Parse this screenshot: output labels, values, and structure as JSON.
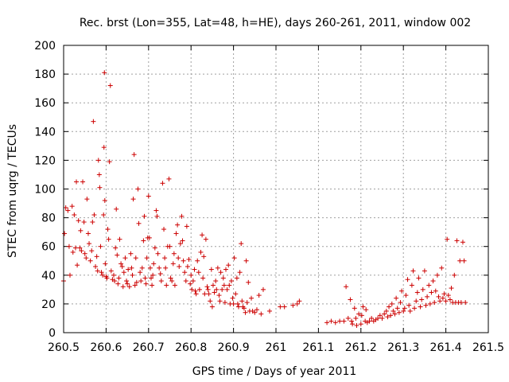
{
  "chart_data": {
    "type": "scatter",
    "title": "Rec. brst (Lon=355, Lat=48, h=HE), days 260-261, 2011, window 002",
    "xlabel": "GPS time / Days of year 2011",
    "ylabel": "STEC from uqrg / TECUs",
    "xlim": [
      260.5,
      261.5
    ],
    "ylim": [
      0,
      200
    ],
    "grid": true,
    "x_ticks": [
      260.5,
      260.6,
      260.7,
      260.8,
      260.9,
      261.0,
      261.1,
      261.2,
      261.3,
      261.4,
      261.5
    ],
    "x_tick_labels": [
      "260.5",
      "260.6",
      "260.7",
      "260.8",
      "260.9",
      "261",
      "261.1",
      "261.2",
      "261.3",
      "261.4",
      "261.5"
    ],
    "y_ticks": [
      0,
      20,
      40,
      60,
      80,
      100,
      120,
      140,
      160,
      180,
      200
    ],
    "y_tick_labels": [
      "0",
      "20",
      "40",
      "60",
      "80",
      "100",
      "120",
      "140",
      "160",
      "180",
      "200"
    ],
    "marker": "+",
    "color": "#cc0000",
    "series": [
      {
        "name": "STEC",
        "points": [
          [
            260.5,
            36
          ],
          [
            260.502,
            69
          ],
          [
            260.505,
            87
          ],
          [
            260.51,
            85
          ],
          [
            260.513,
            60
          ],
          [
            260.515,
            40
          ],
          [
            260.52,
            88
          ],
          [
            260.522,
            56
          ],
          [
            260.525,
            82
          ],
          [
            260.528,
            59
          ],
          [
            260.53,
            105
          ],
          [
            260.532,
            47
          ],
          [
            260.535,
            78
          ],
          [
            260.538,
            59
          ],
          [
            260.54,
            71
          ],
          [
            260.542,
            57
          ],
          [
            260.545,
            105
          ],
          [
            260.548,
            77
          ],
          [
            260.55,
            55
          ],
          [
            260.553,
            52
          ],
          [
            260.555,
            93
          ],
          [
            260.558,
            69
          ],
          [
            260.56,
            62
          ],
          [
            260.563,
            50
          ],
          [
            260.566,
            57
          ],
          [
            260.568,
            77
          ],
          [
            260.57,
            147
          ],
          [
            260.572,
            82
          ],
          [
            260.575,
            46
          ],
          [
            260.578,
            53
          ],
          [
            260.58,
            43
          ],
          [
            260.582,
            120
          ],
          [
            260.584,
            110
          ],
          [
            260.585,
            101
          ],
          [
            260.587,
            60
          ],
          [
            260.589,
            42
          ],
          [
            260.592,
            40
          ],
          [
            260.594,
            82
          ],
          [
            260.595,
            129
          ],
          [
            260.596,
            181
          ],
          [
            260.597,
            92
          ],
          [
            260.598,
            48
          ],
          [
            260.6,
            39
          ],
          [
            260.602,
            38
          ],
          [
            260.604,
            72
          ],
          [
            260.606,
            65
          ],
          [
            260.608,
            119
          ],
          [
            260.61,
            172
          ],
          [
            260.612,
            43
          ],
          [
            260.615,
            37
          ],
          [
            260.618,
            40
          ],
          [
            260.62,
            36
          ],
          [
            260.622,
            59
          ],
          [
            260.624,
            86
          ],
          [
            260.626,
            54
          ],
          [
            260.628,
            34
          ],
          [
            260.63,
            38
          ],
          [
            260.632,
            65
          ],
          [
            260.635,
            48
          ],
          [
            260.638,
            46
          ],
          [
            260.64,
            32
          ],
          [
            260.642,
            42
          ],
          [
            260.645,
            52
          ],
          [
            260.648,
            36
          ],
          [
            260.65,
            34
          ],
          [
            260.652,
            44
          ],
          [
            260.655,
            32
          ],
          [
            260.658,
            55
          ],
          [
            260.66,
            45
          ],
          [
            260.662,
            40
          ],
          [
            260.664,
            93
          ],
          [
            260.666,
            124
          ],
          [
            260.668,
            33
          ],
          [
            260.67,
            52
          ],
          [
            260.672,
            35
          ],
          [
            260.675,
            100
          ],
          [
            260.677,
            76
          ],
          [
            260.68,
            42
          ],
          [
            260.682,
            36
          ],
          [
            260.685,
            45
          ],
          [
            260.688,
            64
          ],
          [
            260.69,
            81
          ],
          [
            260.692,
            38
          ],
          [
            260.694,
            34
          ],
          [
            260.696,
            52
          ],
          [
            260.698,
            66
          ],
          [
            260.7,
            95
          ],
          [
            260.702,
            66
          ],
          [
            260.704,
            45
          ],
          [
            260.706,
            38
          ],
          [
            260.708,
            33
          ],
          [
            260.71,
            40
          ],
          [
            260.712,
            48
          ],
          [
            260.715,
            59
          ],
          [
            260.718,
            85
          ],
          [
            260.72,
            81
          ],
          [
            260.722,
            55
          ],
          [
            260.725,
            45
          ],
          [
            260.728,
            41
          ],
          [
            260.73,
            36
          ],
          [
            260.733,
            104
          ],
          [
            260.736,
            72
          ],
          [
            260.738,
            52
          ],
          [
            260.74,
            45
          ],
          [
            260.742,
            33
          ],
          [
            260.745,
            60
          ],
          [
            260.748,
            107
          ],
          [
            260.75,
            60
          ],
          [
            260.752,
            38
          ],
          [
            260.755,
            36
          ],
          [
            260.758,
            48
          ],
          [
            260.76,
            55
          ],
          [
            260.762,
            33
          ],
          [
            260.765,
            69
          ],
          [
            260.768,
            75
          ],
          [
            260.77,
            52
          ],
          [
            260.772,
            46
          ],
          [
            260.775,
            62
          ],
          [
            260.778,
            81
          ],
          [
            260.78,
            64
          ],
          [
            260.782,
            50
          ],
          [
            260.785,
            42
          ],
          [
            260.788,
            36
          ],
          [
            260.79,
            74
          ],
          [
            260.792,
            46
          ],
          [
            260.795,
            51
          ],
          [
            260.798,
            34
          ],
          [
            260.8,
            40
          ],
          [
            260.802,
            30
          ],
          [
            260.805,
            36
          ],
          [
            260.808,
            44
          ],
          [
            260.81,
            29
          ],
          [
            260.812,
            27
          ],
          [
            260.815,
            50
          ],
          [
            260.818,
            42
          ],
          [
            260.82,
            30
          ],
          [
            260.823,
            56
          ],
          [
            260.826,
            68
          ],
          [
            260.828,
            38
          ],
          [
            260.83,
            53
          ],
          [
            260.832,
            27
          ],
          [
            260.835,
            65
          ],
          [
            260.838,
            32
          ],
          [
            260.84,
            30
          ],
          [
            260.842,
            27
          ],
          [
            260.845,
            22
          ],
          [
            260.848,
            44
          ],
          [
            260.85,
            18
          ],
          [
            260.852,
            33
          ],
          [
            260.855,
            28
          ],
          [
            260.858,
            36
          ],
          [
            260.86,
            30
          ],
          [
            260.863,
            45
          ],
          [
            260.866,
            26
          ],
          [
            260.868,
            22
          ],
          [
            260.87,
            42
          ],
          [
            260.873,
            30
          ],
          [
            260.876,
            38
          ],
          [
            260.878,
            33
          ],
          [
            260.88,
            21
          ],
          [
            260.882,
            44
          ],
          [
            260.885,
            30
          ],
          [
            260.888,
            47
          ],
          [
            260.89,
            33
          ],
          [
            260.892,
            20
          ],
          [
            260.895,
            36
          ],
          [
            260.898,
            24
          ],
          [
            260.9,
            20
          ],
          [
            260.902,
            52
          ],
          [
            260.905,
            27
          ],
          [
            260.908,
            38
          ],
          [
            260.91,
            20
          ],
          [
            260.912,
            18
          ],
          [
            260.915,
            42
          ],
          [
            260.918,
            62
          ],
          [
            260.92,
            22
          ],
          [
            260.922,
            18
          ],
          [
            260.925,
            17
          ],
          [
            260.928,
            14
          ],
          [
            260.93,
            50
          ],
          [
            260.932,
            21
          ],
          [
            260.935,
            35
          ],
          [
            260.938,
            15
          ],
          [
            260.942,
            24
          ],
          [
            260.945,
            15
          ],
          [
            260.95,
            14
          ],
          [
            260.955,
            16
          ],
          [
            260.96,
            26
          ],
          [
            260.965,
            13
          ],
          [
            260.97,
            30
          ],
          [
            260.985,
            15
          ],
          [
            261.01,
            18
          ],
          [
            261.02,
            18
          ],
          [
            261.04,
            19
          ],
          [
            261.05,
            20
          ],
          [
            261.055,
            22
          ],
          [
            261.12,
            7
          ],
          [
            261.13,
            8
          ],
          [
            261.14,
            7
          ],
          [
            261.15,
            8
          ],
          [
            261.16,
            8
          ],
          [
            261.165,
            32
          ],
          [
            261.17,
            10
          ],
          [
            261.175,
            23
          ],
          [
            261.178,
            8
          ],
          [
            261.18,
            6
          ],
          [
            261.185,
            17
          ],
          [
            261.188,
            10
          ],
          [
            261.19,
            5
          ],
          [
            261.195,
            13
          ],
          [
            261.2,
            6
          ],
          [
            261.202,
            12
          ],
          [
            261.205,
            18
          ],
          [
            261.21,
            8
          ],
          [
            261.212,
            16
          ],
          [
            261.215,
            7
          ],
          [
            261.22,
            8
          ],
          [
            261.225,
            10
          ],
          [
            261.23,
            8
          ],
          [
            261.235,
            9
          ],
          [
            261.24,
            10
          ],
          [
            261.245,
            12
          ],
          [
            261.25,
            10
          ],
          [
            261.255,
            13
          ],
          [
            261.26,
            15
          ],
          [
            261.263,
            11
          ],
          [
            261.266,
            18
          ],
          [
            261.27,
            12
          ],
          [
            261.273,
            20
          ],
          [
            261.276,
            15
          ],
          [
            261.28,
            13
          ],
          [
            261.283,
            24
          ],
          [
            261.286,
            17
          ],
          [
            261.29,
            14
          ],
          [
            261.293,
            21
          ],
          [
            261.296,
            29
          ],
          [
            261.3,
            15
          ],
          [
            261.303,
            17
          ],
          [
            261.306,
            26
          ],
          [
            261.31,
            37
          ],
          [
            261.313,
            19
          ],
          [
            261.316,
            15
          ],
          [
            261.32,
            33
          ],
          [
            261.323,
            43
          ],
          [
            261.326,
            17
          ],
          [
            261.33,
            22
          ],
          [
            261.333,
            28
          ],
          [
            261.336,
            38
          ],
          [
            261.34,
            18
          ],
          [
            261.343,
            23
          ],
          [
            261.346,
            30
          ],
          [
            261.35,
            43
          ],
          [
            261.353,
            19
          ],
          [
            261.356,
            25
          ],
          [
            261.36,
            33
          ],
          [
            261.363,
            20
          ],
          [
            261.366,
            28
          ],
          [
            261.37,
            36
          ],
          [
            261.373,
            21
          ],
          [
            261.376,
            29
          ],
          [
            261.38,
            40
          ],
          [
            261.383,
            25
          ],
          [
            261.386,
            22
          ],
          [
            261.39,
            45
          ],
          [
            261.393,
            24
          ],
          [
            261.396,
            27
          ],
          [
            261.4,
            22
          ],
          [
            261.403,
            65
          ],
          [
            261.406,
            26
          ],
          [
            261.41,
            23
          ],
          [
            261.413,
            31
          ],
          [
            261.416,
            21
          ],
          [
            261.42,
            40
          ],
          [
            261.423,
            21
          ],
          [
            261.426,
            64
          ],
          [
            261.43,
            21
          ],
          [
            261.433,
            50
          ],
          [
            261.436,
            21
          ],
          [
            261.44,
            63
          ],
          [
            261.443,
            50
          ],
          [
            261.446,
            21
          ]
        ]
      }
    ]
  }
}
